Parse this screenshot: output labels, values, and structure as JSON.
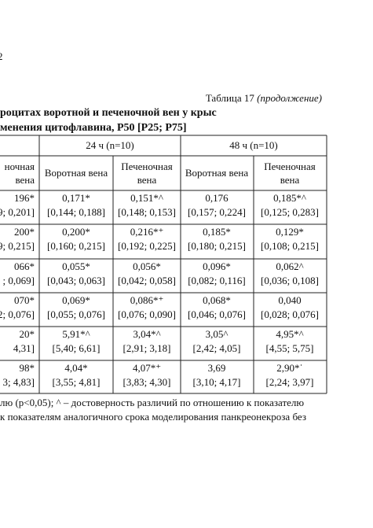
{
  "page_number": "2",
  "caption": {
    "label": "Таблица 17",
    "note": "(продолжение)"
  },
  "title": [
    "роцитах воротной и печеночной вен у крыс",
    "менения цитофлавина, P50 [P25; P75]"
  ],
  "table": {
    "groups": [
      "24 ч (n=10)",
      "48 ч (n=10)"
    ],
    "columns": [
      [
        "ночная",
        "вена"
      ],
      [
        "Воротная вена"
      ],
      [
        "Печеночная",
        "вена"
      ],
      [
        "Воротная вена"
      ],
      [
        "Печеночная",
        "вена"
      ]
    ],
    "rows": [
      [
        [
          "196*",
          "9; 0,201]"
        ],
        [
          "0,171*",
          "[0,144; 0,188]"
        ],
        [
          "0,151*^",
          "[0,148; 0,153]"
        ],
        [
          "0,176",
          "[0,157; 0,224]"
        ],
        [
          "0,185*^",
          "[0,125; 0,283]"
        ]
      ],
      [
        [
          "200*",
          "9; 0,215]"
        ],
        [
          "0,200*",
          "[0,160; 0,215]"
        ],
        [
          "0,216*⁺",
          "[0,192; 0,225]"
        ],
        [
          "0,185*",
          "[0,180; 0,215]"
        ],
        [
          "0,129*",
          "[0,108; 0,215]"
        ]
      ],
      [
        [
          "066*",
          "; 0,069]"
        ],
        [
          "0,055*",
          "[0,043; 0,063]"
        ],
        [
          "0,056*",
          "[0,042; 0,058]"
        ],
        [
          "0,096*",
          "[0,082; 0,116]"
        ],
        [
          "0,062^",
          "[0,036; 0,108]"
        ]
      ],
      [
        [
          "070*",
          "2; 0,076]"
        ],
        [
          "0,069*",
          "[0,055; 0,076]"
        ],
        [
          "0,086*⁺",
          "[0,076; 0,090]"
        ],
        [
          "0,068*",
          "[0,046; 0,076]"
        ],
        [
          "0,040",
          "[0,028; 0,076]"
        ]
      ],
      [
        [
          "20*",
          "4,31]"
        ],
        [
          "5,91*^",
          "[5,40; 6,61]"
        ],
        [
          "3,04*^",
          "[2,91; 3,18]"
        ],
        [
          "3,05^",
          "[2,42; 4,05]"
        ],
        [
          "4,95*^",
          "[4,55; 5,75]"
        ]
      ],
      [
        [
          "98*",
          "3; 4,83]"
        ],
        [
          "4,04*",
          "[3,55; 4,81]"
        ],
        [
          "4,07*⁺",
          "[3,83; 4,30]"
        ],
        [
          "3,69",
          "[3,10; 4,17]"
        ],
        [
          "2,90*ˈ",
          "[2,24; 3,97]"
        ]
      ]
    ]
  },
  "footnotes": [
    "лю (p<0,05); ^ – достоверность различий по отношению к показателю",
    "к показателям аналогичного срока моделирования панкреонекроза без"
  ]
}
